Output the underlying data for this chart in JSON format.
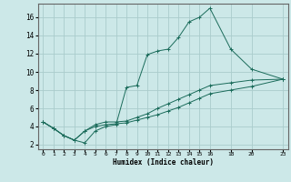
{
  "xlabel": "Humidex (Indice chaleur)",
  "background_color": "#cce8e8",
  "grid_color": "#aacccc",
  "line_color": "#1a6b5a",
  "xlim": [
    -0.5,
    23.5
  ],
  "ylim": [
    1.5,
    17.5
  ],
  "xticks": [
    0,
    1,
    2,
    3,
    4,
    5,
    6,
    7,
    8,
    9,
    10,
    11,
    12,
    13,
    14,
    15,
    16,
    18,
    20,
    23
  ],
  "yticks": [
    2,
    4,
    6,
    8,
    10,
    12,
    14,
    16
  ],
  "series": [
    {
      "x": [
        0,
        1,
        2,
        3,
        4,
        5,
        6,
        7,
        8,
        9,
        10,
        11,
        12,
        13,
        14,
        15,
        16,
        18,
        20,
        23
      ],
      "y": [
        4.5,
        3.8,
        3.0,
        2.5,
        2.2,
        3.5,
        4.0,
        4.2,
        8.3,
        8.5,
        11.9,
        12.3,
        12.5,
        13.8,
        15.5,
        16.0,
        17.0,
        12.5,
        10.3,
        9.2
      ]
    },
    {
      "x": [
        0,
        1,
        2,
        3,
        4,
        5,
        6,
        7,
        8,
        9,
        10,
        11,
        12,
        13,
        14,
        15,
        16,
        18,
        20,
        23
      ],
      "y": [
        4.5,
        3.8,
        3.0,
        2.5,
        3.5,
        4.2,
        4.5,
        4.5,
        4.6,
        5.0,
        5.4,
        6.0,
        6.5,
        7.0,
        7.5,
        8.0,
        8.5,
        8.8,
        9.1,
        9.2
      ]
    },
    {
      "x": [
        0,
        1,
        2,
        3,
        4,
        5,
        6,
        7,
        8,
        9,
        10,
        11,
        12,
        13,
        14,
        15,
        16,
        18,
        20,
        23
      ],
      "y": [
        4.5,
        3.8,
        3.0,
        2.5,
        3.5,
        4.0,
        4.2,
        4.3,
        4.4,
        4.7,
        5.0,
        5.3,
        5.7,
        6.1,
        6.6,
        7.1,
        7.6,
        8.0,
        8.4,
        9.2
      ]
    }
  ]
}
